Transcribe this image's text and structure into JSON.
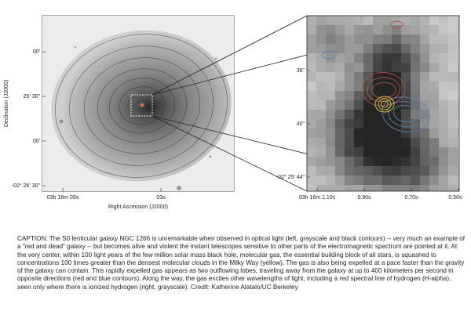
{
  "left_panel": {
    "y_axis_label": "Declination (J2000)",
    "x_axis_label": "Right Ascension (J2000)",
    "y_ticks": [
      "00'",
      "25' 30\"",
      "00'",
      "-02° 26' 30\""
    ],
    "x_ticks": [
      "03h 16m 05s",
      "03s"
    ]
  },
  "right_panel": {
    "y_ticks": [
      "36\"",
      "40\"",
      "-02° 25' 44\""
    ],
    "x_ticks": [
      "03h 16m 1.10s",
      "0.90s",
      "0.70s",
      "0.50s"
    ]
  },
  "contour_colors": {
    "molecular_gas": "#d4c44a",
    "red_lobe": "#b4504a",
    "blue_lobe": "#5a7fb0"
  },
  "caption": "CAPTION: The S0 lenticular galaxy NGC 1266 is unremarkable when observed in optical light (left, grayscale and black contours) -- very much an example of a \"red and dead\" galaxy -- but becomes alive and violent the instant telescopes sensitive to other parts of the electromagnetic spectrum are pointed at it. At the very center, within 100 light years of the few million solar mass black hole, molecular gas, the essential building block of all stars, is squashed to concentrations 100 times greater than the densest molecular clouds in the Milky Way (yellow). The gas is also being expelled at a pace faster than the gravity of the galaxy can contain. This rapidly expelled gas appears as two outflowing lobes, traveling away from the galaxy at up to 400 kilometers per second in opposite directions (red and blue contours). Along the way, the gas excites other wavelengths of light, including a red spectral line of hydrogen (H-alpha), seen only where there is ionized hydrogen (right, grayscale). Credit: Katherine Alatalo/UC Berkeley"
}
